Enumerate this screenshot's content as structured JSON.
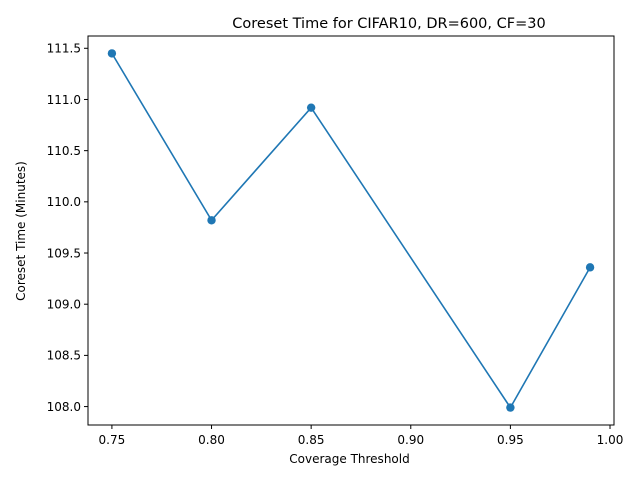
{
  "chart_data": {
    "type": "line",
    "title": "Coreset Time for CIFAR10, DR=600, CF=30",
    "xlabel": "Coverage Threshold",
    "ylabel": "Coreset Time (Minutes)",
    "x": [
      0.75,
      0.8,
      0.85,
      0.95,
      0.99
    ],
    "series": [
      {
        "values": [
          111.45,
          109.82,
          110.92,
          107.99,
          109.36
        ],
        "color": "#1f77b4",
        "marker": "circle"
      }
    ],
    "xlim": [
      0.738,
      1.002
    ],
    "ylim": [
      107.82,
      111.62
    ],
    "xticks": [
      "0.75",
      "0.80",
      "0.85",
      "0.90",
      "0.95",
      "1.00"
    ],
    "yticks": [
      "108.0",
      "108.5",
      "109.0",
      "109.5",
      "110.0",
      "110.5",
      "111.0",
      "111.5"
    ],
    "grid": false,
    "legend": "none"
  }
}
